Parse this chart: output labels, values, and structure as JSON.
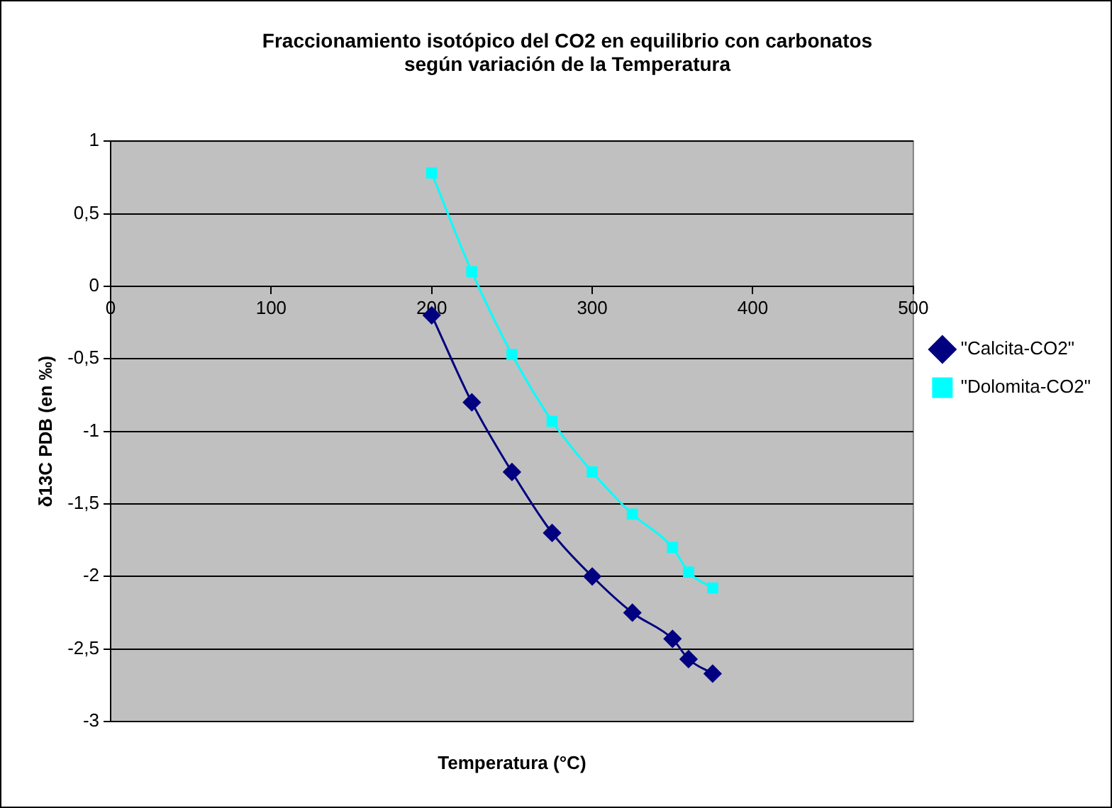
{
  "chart_data": {
    "type": "line",
    "title": "Fraccionamiento isotópico del CO2 en equilibrio con carbonatos\nsegún variación de la Temperatura",
    "xlabel": "Temperatura (°C)",
    "ylabel": "δ13C PDB (en ‰)",
    "x": [
      200,
      225,
      250,
      275,
      300,
      325,
      350,
      360,
      375
    ],
    "series": [
      {
        "name": "\"Calcita-CO2\"",
        "color": "#000080",
        "marker": "diamond",
        "values": [
          -0.2,
          -0.8,
          -1.28,
          -1.7,
          -2.0,
          -2.25,
          -2.43,
          -2.57,
          -2.67
        ]
      },
      {
        "name": "\"Dolomita-CO2\"",
        "color": "#00ffff",
        "marker": "square",
        "values": [
          0.78,
          0.1,
          -0.47,
          -0.93,
          -1.28,
          -1.57,
          -1.8,
          -1.97,
          -2.08
        ]
      }
    ],
    "xlim": [
      0,
      500
    ],
    "xticks": [
      0,
      100,
      200,
      300,
      400,
      500
    ],
    "ylim": [
      -3,
      1
    ],
    "yticks": [
      1,
      {
        "value": 0.5,
        "label": "0,5"
      },
      0,
      {
        "value": -0.5,
        "label": "-0,5"
      },
      -1,
      {
        "value": -1.5,
        "label": "-1,5"
      },
      -2,
      {
        "value": -2.5,
        "label": "-2,5"
      },
      -3
    ],
    "grid": "y",
    "legend": "right",
    "line_style": "solid"
  }
}
